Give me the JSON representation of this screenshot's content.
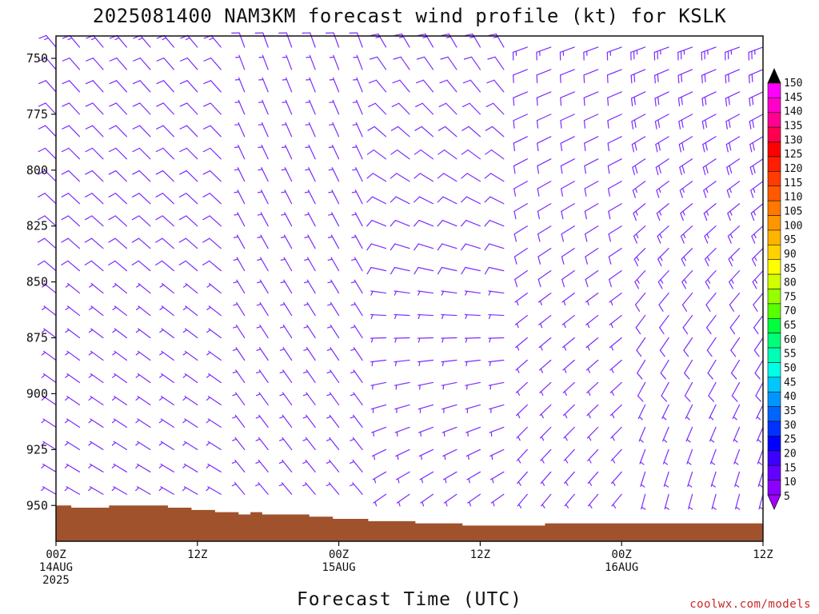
{
  "chart_data": {
    "type": "wind-barb time-height",
    "title": "2025081400 NAM3KM forecast wind profile (kt) for KSLK",
    "xlabel": "Forecast Time (UTC)",
    "ylabel": "",
    "x_range_hours": [
      0,
      60
    ],
    "x_ticks": [
      {
        "hour": 0,
        "label": "00Z",
        "date": "14AUG",
        "year": "2025"
      },
      {
        "hour": 12,
        "label": "12Z",
        "date": "",
        "year": ""
      },
      {
        "hour": 24,
        "label": "00Z",
        "date": "15AUG",
        "year": ""
      },
      {
        "hour": 36,
        "label": "12Z",
        "date": "",
        "year": ""
      },
      {
        "hour": 48,
        "label": "00Z",
        "date": "16AUG",
        "year": ""
      },
      {
        "hour": 60,
        "label": "12Z",
        "date": "",
        "year": ""
      }
    ],
    "y_ticks_hpa": [
      750,
      775,
      800,
      825,
      850,
      875,
      900,
      925,
      950
    ],
    "y_range_hpa": [
      740,
      966
    ],
    "barb_levels_hpa": [
      745,
      755,
      765,
      775,
      785,
      795,
      805,
      815,
      825,
      835,
      845,
      855,
      865,
      875,
      885,
      895,
      905,
      915,
      925,
      935,
      945
    ],
    "barb_hours": [
      0,
      2,
      4,
      6,
      8,
      10,
      12,
      14,
      16,
      18,
      20,
      22,
      24,
      26,
      28,
      30,
      32,
      34,
      36,
      38,
      40,
      42,
      44,
      46,
      48,
      50,
      52,
      54,
      56,
      58,
      60
    ],
    "wind_regimes": [
      {
        "hours": [
          0,
          14
        ],
        "direction_deg_lower": 300,
        "direction_deg_upper": 320,
        "speed_kt": [
          5,
          15
        ]
      },
      {
        "hours": [
          14,
          26
        ],
        "direction_deg_lower": 320,
        "direction_deg_upper": 340,
        "speed_kt": [
          5,
          10
        ]
      },
      {
        "hours": [
          26,
          38
        ],
        "direction_deg_lower": 235,
        "direction_deg_upper": 330,
        "speed_kt": [
          5,
          15
        ]
      },
      {
        "hours": [
          38,
          48
        ],
        "direction_deg_lower": 220,
        "direction_deg_upper": 250,
        "speed_kt": [
          5,
          15
        ]
      },
      {
        "hours": [
          48,
          60
        ],
        "direction_deg_lower": 195,
        "direction_deg_upper": 250,
        "speed_kt": [
          5,
          25
        ]
      }
    ],
    "ground_surface_hpa": [
      {
        "hour": 0,
        "p": 950
      },
      {
        "hour": 1.3,
        "p": 951
      },
      {
        "hour": 4.5,
        "p": 950
      },
      {
        "hour": 9.5,
        "p": 951
      },
      {
        "hour": 11.5,
        "p": 952
      },
      {
        "hour": 13.5,
        "p": 953
      },
      {
        "hour": 15.5,
        "p": 954
      },
      {
        "hour": 16.5,
        "p": 953
      },
      {
        "hour": 17.5,
        "p": 954
      },
      {
        "hour": 21.5,
        "p": 955
      },
      {
        "hour": 23.5,
        "p": 956
      },
      {
        "hour": 26.5,
        "p": 957
      },
      {
        "hour": 30.5,
        "p": 958
      },
      {
        "hour": 34.5,
        "p": 959
      },
      {
        "hour": 41.5,
        "p": 958
      },
      {
        "hour": 50,
        "p": 958
      },
      {
        "hour": 60,
        "p": 958
      }
    ],
    "colorbar": {
      "labels": [
        150,
        145,
        140,
        135,
        130,
        125,
        120,
        115,
        110,
        105,
        100,
        95,
        90,
        85,
        80,
        75,
        70,
        65,
        60,
        55,
        50,
        45,
        40,
        35,
        30,
        25,
        20,
        15,
        10,
        5
      ],
      "colors": [
        "#ff00ff",
        "#ff00c8",
        "#ff0090",
        "#ff0050",
        "#ff0000",
        "#ff1e00",
        "#ff3c00",
        "#ff5a00",
        "#ff7800",
        "#ff9600",
        "#ffb400",
        "#ffd200",
        "#ffff00",
        "#d2ff00",
        "#96ff00",
        "#5aff00",
        "#00ff3c",
        "#00ff78",
        "#00ffb4",
        "#00ffe6",
        "#00c8ff",
        "#0096ff",
        "#0064ff",
        "#0032ff",
        "#0000ff",
        "#3c00ff",
        "#6400ff",
        "#8c00ff"
      ],
      "top_triangle": "#000000",
      "bottom_triangle": "#a000ff"
    },
    "barb_color": "#7b2cff",
    "ground_color": "#a0522d",
    "grid": false
  },
  "credit": "coolwx.com/models"
}
